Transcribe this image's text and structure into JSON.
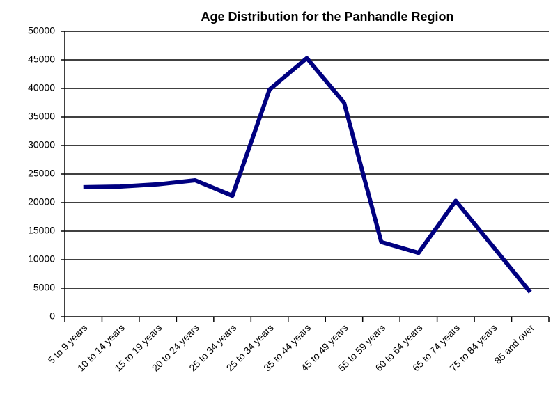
{
  "chart_data": {
    "type": "line",
    "title": "Age Distribution for the Panhandle Region",
    "categories": [
      "5 to 9 years",
      "10 to 14 years",
      "15 to 19 years",
      "20 to 24 years",
      "25 to 34 years",
      "25 to 34 years",
      "35 to 44 years",
      "45 to 49 years",
      "55 to 59 years",
      "60 to 64 years",
      "65 to 74 years",
      "75 to 84 years",
      "85 and over"
    ],
    "values": [
      22700,
      22800,
      23200,
      23900,
      21200,
      39800,
      45300,
      37500,
      13100,
      11200,
      20300,
      12300,
      4300
    ],
    "color": "#000080",
    "ylim": [
      0,
      50000
    ],
    "yticks": [
      0,
      5000,
      10000,
      15000,
      20000,
      25000,
      30000,
      35000,
      40000,
      45000,
      50000
    ],
    "grid": true
  }
}
